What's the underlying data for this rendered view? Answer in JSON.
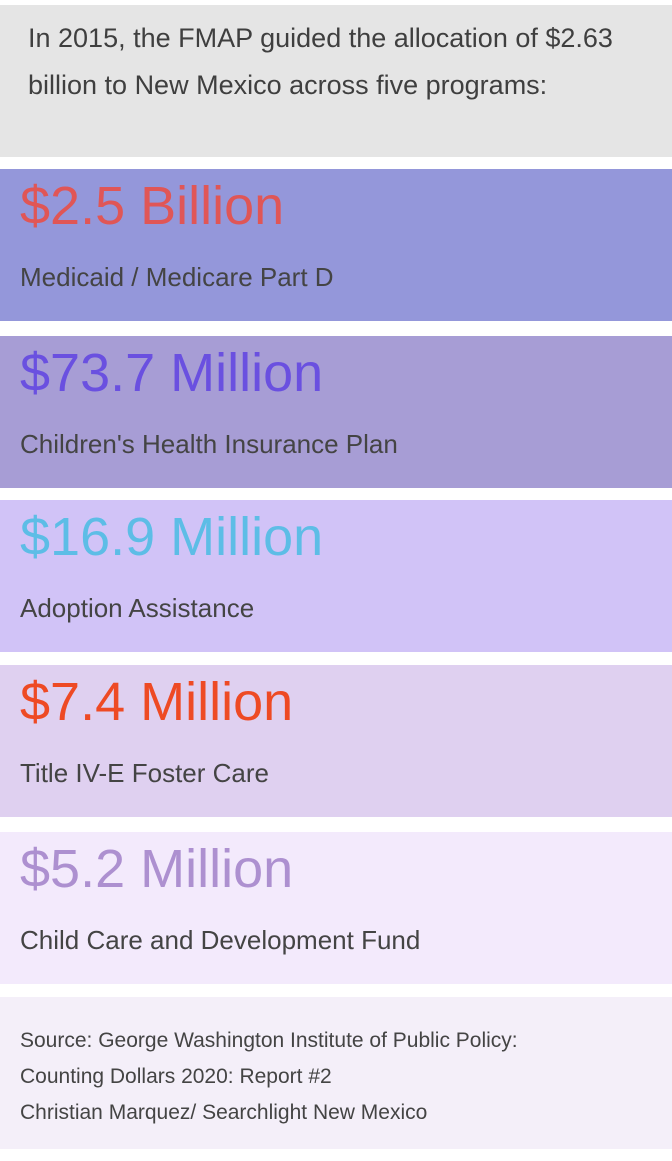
{
  "intro": " In 2015, the FMAP guided the allocation of $2.63 billion to New Mexico across five programs:",
  "programs": [
    {
      "amount": "$2.5 Billion",
      "label": "Medicaid / Medicare Part D",
      "bg": "#9497da",
      "color": "#e05656"
    },
    {
      "amount": "$73.7 Million",
      "label": "Children's Health Insurance Plan",
      "bg": "#a79dd5",
      "color": "#6a50e0"
    },
    {
      "amount": "$16.9 Million",
      "label": "Adoption Assistance",
      "bg": "#d1c3f7",
      "color": "#5dbde6"
    },
    {
      "amount": "$7.4 Million",
      "label": "Title IV-E Foster Care",
      "bg": "#dfd0f0",
      "color": "#ee4a24"
    },
    {
      "amount": "$5.2 Million",
      "label": "Child Care and Development Fund",
      "bg": "#f3eafc",
      "color": "#ad90d0"
    }
  ],
  "source": {
    "line1": "Source: George Washington Institute of Public Policy:",
    "line2": "Counting Dollars 2020: Report #2",
    "line3": "Christian Marquez/ Searchlight New Mexico"
  }
}
